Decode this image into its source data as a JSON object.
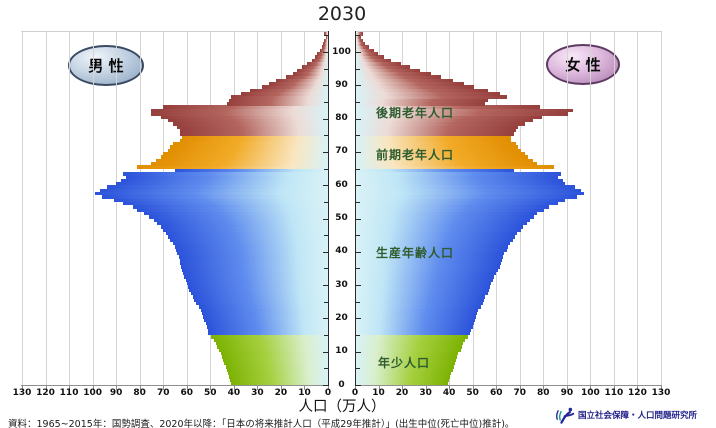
{
  "title": "2030",
  "legend": {
    "male": "男 性",
    "female": "女 性"
  },
  "bands": [
    {
      "label": "年少人口",
      "age_range": [
        0,
        14
      ],
      "colors": {
        "edge": "#7cb202",
        "mid": "#a6d040",
        "pale": "#d9efcc"
      }
    },
    {
      "label": "生産年齢人口",
      "age_range": [
        15,
        64
      ],
      "colors": {
        "edge": "#2b52da",
        "mid": "#5f8cee",
        "pale": "#bfe6f6"
      }
    },
    {
      "label": "前期老年人口",
      "age_range": [
        65,
        74
      ],
      "colors": {
        "edge": "#e18d00",
        "mid": "#f2ab28",
        "pale": "#f9e6c1"
      }
    },
    {
      "label": "後期老年人口",
      "age_range": [
        75,
        105
      ],
      "colors": {
        "edge": "#963f3d",
        "mid": "#b3655e",
        "pale": "#eddbd6"
      }
    }
  ],
  "axis": {
    "x_title": "人口（万人）",
    "x_max": 130,
    "x_tick_step": 10,
    "x_tick_values": [
      0,
      10,
      20,
      30,
      40,
      50,
      60,
      70,
      80,
      90,
      100,
      110,
      120,
      130
    ],
    "age_tick_labels": [
      0,
      10,
      20,
      30,
      40,
      50,
      60,
      70,
      80,
      90,
      100
    ],
    "age_minor_step": 5,
    "axis_tint": "#d9f2f6"
  },
  "footer": {
    "source": "資料：1965~2015年：国勢調査、2020年以降：「日本の将来推計人口（平成29年推計）」(出生中位(死亡中位)推計)。",
    "org": "国立社会保障・人口問題研究所"
  },
  "chart_data": {
    "type": "bar",
    "subtype": "population-pyramid",
    "title": "2030",
    "unit": "万人",
    "xlabel": "人口（万人）",
    "x_range": [
      0,
      130
    ],
    "age_min": 0,
    "age_max": 105,
    "grid": true,
    "series": [
      {
        "name": "男性",
        "side": "left",
        "values": [
          41,
          41.5,
          42,
          42.5,
          43,
          43.5,
          44,
          44.5,
          45,
          45.5,
          46.5,
          47,
          47.5,
          48.5,
          49.5,
          51,
          51,
          51.5,
          52,
          52.5,
          53,
          53.5,
          54,
          55,
          56,
          57,
          57.5,
          58,
          59,
          59.5,
          60,
          60.5,
          61,
          61.5,
          62,
          62.5,
          63,
          63,
          63.5,
          64,
          64.5,
          65,
          66,
          67,
          68,
          69,
          70,
          71,
          72.5,
          74,
          76,
          78,
          81,
          83,
          87,
          91,
          96,
          99,
          97,
          94,
          90,
          88,
          86,
          87,
          65,
          81,
          75,
          73,
          71,
          70,
          68,
          67,
          66,
          63,
          62,
          63,
          63,
          64,
          66,
          68,
          71,
          75,
          75,
          70,
          43,
          42,
          41,
          37,
          33,
          28,
          25,
          22,
          18,
          15,
          13,
          11,
          9,
          7,
          5.5,
          4.5,
          3.5,
          2.5,
          2,
          1.5,
          1,
          1.5
        ]
      },
      {
        "name": "女性",
        "side": "right",
        "values": [
          39,
          39.5,
          40,
          40.5,
          41,
          41.5,
          42,
          42.5,
          43,
          43.5,
          44.5,
          45,
          45.5,
          46.5,
          47.5,
          48.5,
          49,
          49.5,
          50,
          50.5,
          51,
          51.5,
          52,
          53,
          54,
          54.5,
          55,
          56,
          56.5,
          57,
          57.5,
          58,
          58.5,
          59.5,
          60.5,
          61,
          61.5,
          62,
          62.5,
          63,
          64,
          64.5,
          65.5,
          66.5,
          67.5,
          68.5,
          70,
          71,
          72.5,
          74,
          75.5,
          77,
          80,
          82,
          86,
          89,
          94,
          97,
          95.5,
          93,
          89,
          88,
          86,
          87,
          67,
          84,
          77,
          75,
          73,
          72,
          70,
          69,
          68,
          66,
          66,
          67,
          68,
          69,
          72,
          75,
          79,
          90,
          92,
          78,
          55,
          56,
          64,
          61,
          56,
          50,
          46,
          41,
          36,
          32,
          27,
          23,
          19,
          15,
          12,
          9.5,
          7.5,
          5.5,
          4,
          3,
          2,
          3
        ]
      }
    ]
  }
}
